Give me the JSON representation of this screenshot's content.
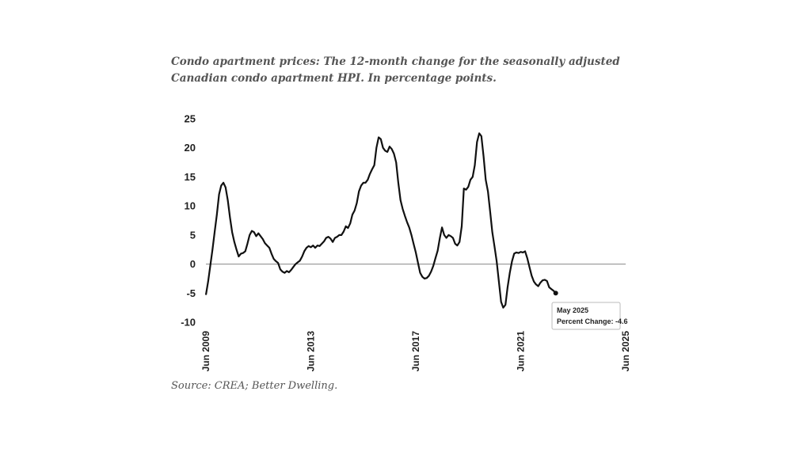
{
  "caption": "Condo apartment prices: The 12-month change for the seasonally adjusted Canadian condo apartment HPI. In percentage points.",
  "source": "Source: CREA; Better Dwelling.",
  "chart_data": {
    "type": "line",
    "title": "Condo apartment prices: The 12-month change for the seasonally adjusted Canadian condo apartment HPI. In percentage points.",
    "xlabel": "",
    "ylabel": "",
    "ylim": [
      -10,
      25
    ],
    "yticks": [
      25,
      20,
      15,
      10,
      5,
      0,
      -5,
      -10
    ],
    "xticks": [
      "Jun 2009",
      "Jun 2013",
      "Jun 2017",
      "Jun 2021",
      "Jun 2025"
    ],
    "grid": false,
    "zero_line": true,
    "line_color": "#111111",
    "series": [
      {
        "name": "",
        "points": [
          [
            "2009-06",
            -5.3
          ],
          [
            "2009-07",
            -3.0
          ],
          [
            "2009-08",
            -0.3
          ],
          [
            "2009-09",
            2.5
          ],
          [
            "2009-10",
            5.5
          ],
          [
            "2009-11",
            8.5
          ],
          [
            "2009-12",
            12.0
          ],
          [
            "2010-01",
            13.5
          ],
          [
            "2010-02",
            14.0
          ],
          [
            "2010-03",
            13.2
          ],
          [
            "2010-04",
            11.0
          ],
          [
            "2010-05",
            8.0
          ],
          [
            "2010-06",
            5.5
          ],
          [
            "2010-07",
            3.8
          ],
          [
            "2010-08",
            2.5
          ],
          [
            "2010-09",
            1.3
          ],
          [
            "2010-10",
            1.8
          ],
          [
            "2010-11",
            1.9
          ],
          [
            "2010-12",
            2.2
          ],
          [
            "2011-01",
            3.5
          ],
          [
            "2011-02",
            5.0
          ],
          [
            "2011-03",
            5.7
          ],
          [
            "2011-04",
            5.5
          ],
          [
            "2011-05",
            4.8
          ],
          [
            "2011-06",
            5.3
          ],
          [
            "2011-07",
            4.8
          ],
          [
            "2011-08",
            4.3
          ],
          [
            "2011-09",
            3.6
          ],
          [
            "2011-10",
            3.2
          ],
          [
            "2011-11",
            2.8
          ],
          [
            "2011-12",
            1.8
          ],
          [
            "2012-01",
            0.9
          ],
          [
            "2012-02",
            0.5
          ],
          [
            "2012-03",
            0.2
          ],
          [
            "2012-04",
            -0.9
          ],
          [
            "2012-05",
            -1.3
          ],
          [
            "2012-06",
            -1.5
          ],
          [
            "2012-07",
            -1.2
          ],
          [
            "2012-08",
            -1.4
          ],
          [
            "2012-09",
            -1.0
          ],
          [
            "2012-10",
            -0.5
          ],
          [
            "2012-11",
            0.0
          ],
          [
            "2012-12",
            0.3
          ],
          [
            "2013-01",
            0.6
          ],
          [
            "2013-02",
            1.3
          ],
          [
            "2013-03",
            2.2
          ],
          [
            "2013-04",
            2.8
          ],
          [
            "2013-05",
            3.1
          ],
          [
            "2013-06",
            2.9
          ],
          [
            "2013-07",
            3.2
          ],
          [
            "2013-08",
            2.8
          ],
          [
            "2013-09",
            3.2
          ],
          [
            "2013-10",
            3.1
          ],
          [
            "2013-11",
            3.5
          ],
          [
            "2013-12",
            3.9
          ],
          [
            "2014-01",
            4.5
          ],
          [
            "2014-02",
            4.7
          ],
          [
            "2014-03",
            4.4
          ],
          [
            "2014-04",
            3.8
          ],
          [
            "2014-05",
            4.5
          ],
          [
            "2014-06",
            4.7
          ],
          [
            "2014-07",
            5.0
          ],
          [
            "2014-08",
            5.0
          ],
          [
            "2014-09",
            5.6
          ],
          [
            "2014-10",
            6.5
          ],
          [
            "2014-11",
            6.2
          ],
          [
            "2014-12",
            7.0
          ],
          [
            "2015-01",
            8.5
          ],
          [
            "2015-02",
            9.2
          ],
          [
            "2015-03",
            10.5
          ],
          [
            "2015-04",
            12.5
          ],
          [
            "2015-05",
            13.5
          ],
          [
            "2015-06",
            14.0
          ],
          [
            "2015-07",
            14.0
          ],
          [
            "2015-08",
            14.5
          ],
          [
            "2015-09",
            15.5
          ],
          [
            "2015-10",
            16.3
          ],
          [
            "2015-11",
            17.0
          ],
          [
            "2015-12",
            20.0
          ],
          [
            "2016-01",
            21.8
          ],
          [
            "2016-02",
            21.5
          ],
          [
            "2016-03",
            20.0
          ],
          [
            "2016-04",
            19.5
          ],
          [
            "2016-05",
            19.3
          ],
          [
            "2016-06",
            20.2
          ],
          [
            "2016-07",
            19.8
          ],
          [
            "2016-08",
            19.0
          ],
          [
            "2016-09",
            17.5
          ],
          [
            "2016-10",
            14.0
          ],
          [
            "2016-11",
            11.0
          ],
          [
            "2016-12",
            9.5
          ],
          [
            "2017-01",
            8.3
          ],
          [
            "2017-02",
            7.2
          ],
          [
            "2017-03",
            6.3
          ],
          [
            "2017-04",
            5.0
          ],
          [
            "2017-05",
            3.5
          ],
          [
            "2017-06",
            2.0
          ],
          [
            "2017-07",
            0.2
          ],
          [
            "2017-08",
            -1.5
          ],
          [
            "2017-09",
            -2.2
          ],
          [
            "2017-10",
            -2.5
          ],
          [
            "2017-11",
            -2.4
          ],
          [
            "2017-12",
            -2.0
          ],
          [
            "2018-01",
            -1.3
          ],
          [
            "2018-02",
            -0.3
          ],
          [
            "2018-03",
            1.0
          ],
          [
            "2018-04",
            2.3
          ],
          [
            "2018-05",
            4.5
          ],
          [
            "2018-06",
            6.3
          ],
          [
            "2018-07",
            5.0
          ],
          [
            "2018-08",
            4.5
          ],
          [
            "2018-09",
            5.0
          ],
          [
            "2018-10",
            4.8
          ],
          [
            "2018-11",
            4.5
          ],
          [
            "2018-12",
            3.5
          ],
          [
            "2019-01",
            3.2
          ],
          [
            "2019-02",
            3.8
          ],
          [
            "2019-03",
            6.5
          ],
          [
            "2019-04",
            13.0
          ],
          [
            "2019-05",
            12.8
          ],
          [
            "2019-06",
            13.3
          ],
          [
            "2019-07",
            14.5
          ],
          [
            "2019-08",
            15.0
          ],
          [
            "2019-09",
            17.0
          ],
          [
            "2019-10",
            21.0
          ],
          [
            "2019-11",
            22.5
          ],
          [
            "2019-12",
            22.0
          ],
          [
            "2020-01",
            18.5
          ],
          [
            "2020-02",
            14.5
          ],
          [
            "2020-03",
            12.5
          ],
          [
            "2020-04",
            9.0
          ],
          [
            "2020-05",
            5.5
          ],
          [
            "2020-06",
            3.0
          ],
          [
            "2020-07",
            0.5
          ],
          [
            "2020-08",
            -3.0
          ],
          [
            "2020-09",
            -6.5
          ],
          [
            "2020-10",
            -7.5
          ],
          [
            "2020-11",
            -7.0
          ],
          [
            "2020-12",
            -4.0
          ],
          [
            "2021-01",
            -1.5
          ],
          [
            "2021-02",
            0.5
          ],
          [
            "2021-03",
            1.8
          ],
          [
            "2021-04",
            2.0
          ],
          [
            "2021-05",
            1.9
          ],
          [
            "2021-06",
            2.1
          ],
          [
            "2021-07",
            2.0
          ],
          [
            "2021-08",
            2.2
          ],
          [
            "2021-09",
            1.0
          ],
          [
            "2021-10",
            -0.5
          ],
          [
            "2021-11",
            -2.0
          ],
          [
            "2021-12",
            -3.0
          ],
          [
            "2022-01",
            -3.5
          ],
          [
            "2022-02",
            -3.8
          ],
          [
            "2022-03",
            -3.2
          ],
          [
            "2022-04",
            -2.8
          ],
          [
            "2022-05",
            -2.7
          ],
          [
            "2022-06",
            -2.9
          ],
          [
            "2022-07",
            -4.0
          ],
          [
            "2022-08",
            -4.3
          ],
          [
            "2022-09",
            -4.6
          ],
          [
            "2022-10",
            -5.0
          ]
        ]
      }
    ],
    "tooltip": {
      "title": "May 2025",
      "label": "Percent Change: -4.6"
    }
  }
}
